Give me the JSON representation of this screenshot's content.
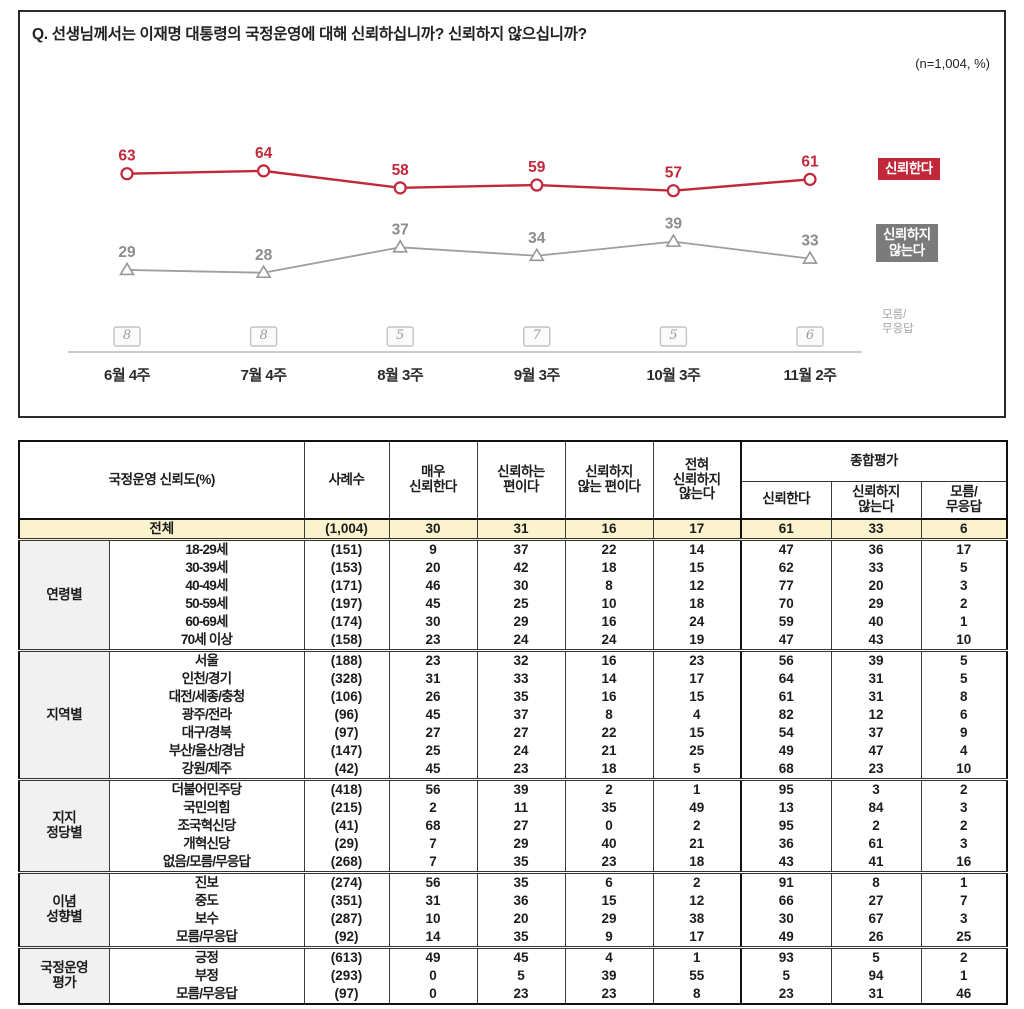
{
  "question": "Q. 선생님께서는 이재명 대통령의 국정운영에 대해 신뢰하십니까? 신뢰하지 않으십니까?",
  "sample_note": "(n=1,004, %)",
  "colors": {
    "trust_accent": "#c1293b",
    "distrust_line": "#9e9e9e",
    "distrust_label": "#8c8c8c",
    "distrust_legend_bg": "#7b7b7b",
    "dk_gray": "#9a9a9a",
    "highlight_row": "#faf3cd"
  },
  "legend": {
    "trust": "신뢰한다",
    "distrust": "신뢰하지\n않는다",
    "dk": "모름/\n무응답"
  },
  "chart_data": {
    "type": "line",
    "categories": [
      "6월 4주",
      "7월 4주",
      "8월 3주",
      "9월 3주",
      "10월 3주",
      "11월 2주"
    ],
    "series": [
      {
        "name": "신뢰한다",
        "marker": "circle",
        "color": "#c1293b",
        "values": [
          63,
          64,
          58,
          59,
          57,
          61
        ]
      },
      {
        "name": "신뢰하지 않는다",
        "marker": "triangle",
        "color": "#9e9e9e",
        "values": [
          29,
          28,
          37,
          34,
          39,
          33
        ]
      },
      {
        "name": "모름/무응답",
        "marker": "box",
        "color": "#9a9a9a",
        "values": [
          8,
          8,
          5,
          7,
          5,
          6
        ]
      }
    ],
    "ylim": [
      0,
      100
    ],
    "grid": false,
    "legend_position": "right",
    "value_labels": true
  },
  "table": {
    "corner": "국정운영 신뢰도(%)",
    "n_col": "사례수",
    "scale_cols": [
      "매우\n신뢰한다",
      "신뢰하는\n편이다",
      "신뢰하지\n않는 편이다",
      "전혀\n신뢰하지\n않는다"
    ],
    "overall": "종합평가",
    "overall_cols": [
      "신뢰한다",
      "신뢰하지\n않는다",
      "모름/\n무응답"
    ],
    "total": {
      "label": "전체",
      "n": "(1,004)",
      "values": [
        30,
        31,
        16,
        17,
        61,
        33,
        6
      ]
    },
    "groups": [
      {
        "name": "연령별",
        "rows": [
          {
            "label": "18-29세",
            "n": "(151)",
            "values": [
              9,
              37,
              22,
              14,
              47,
              36,
              17
            ]
          },
          {
            "label": "30-39세",
            "n": "(153)",
            "values": [
              20,
              42,
              18,
              15,
              62,
              33,
              5
            ]
          },
          {
            "label": "40-49세",
            "n": "(171)",
            "values": [
              46,
              30,
              8,
              12,
              77,
              20,
              3
            ]
          },
          {
            "label": "50-59세",
            "n": "(197)",
            "values": [
              45,
              25,
              10,
              18,
              70,
              29,
              2
            ]
          },
          {
            "label": "60-69세",
            "n": "(174)",
            "values": [
              30,
              29,
              16,
              24,
              59,
              40,
              1
            ]
          },
          {
            "label": "70세 이상",
            "n": "(158)",
            "values": [
              23,
              24,
              24,
              19,
              47,
              43,
              10
            ]
          }
        ]
      },
      {
        "name": "지역별",
        "rows": [
          {
            "label": "서울",
            "n": "(188)",
            "values": [
              23,
              32,
              16,
              23,
              56,
              39,
              5
            ]
          },
          {
            "label": "인천/경기",
            "n": "(328)",
            "values": [
              31,
              33,
              14,
              17,
              64,
              31,
              5
            ]
          },
          {
            "label": "대전/세종/충청",
            "n": "(106)",
            "values": [
              26,
              35,
              16,
              15,
              61,
              31,
              8
            ]
          },
          {
            "label": "광주/전라",
            "n": "(96)",
            "values": [
              45,
              37,
              8,
              4,
              82,
              12,
              6
            ]
          },
          {
            "label": "대구/경북",
            "n": "(97)",
            "values": [
              27,
              27,
              22,
              15,
              54,
              37,
              9
            ]
          },
          {
            "label": "부산/울산/경남",
            "n": "(147)",
            "values": [
              25,
              24,
              21,
              25,
              49,
              47,
              4
            ]
          },
          {
            "label": "강원/제주",
            "n": "(42)",
            "values": [
              45,
              23,
              18,
              5,
              68,
              23,
              10
            ]
          }
        ]
      },
      {
        "name": "지지\n정당별",
        "rows": [
          {
            "label": "더불어민주당",
            "n": "(418)",
            "values": [
              56,
              39,
              2,
              1,
              95,
              3,
              2
            ]
          },
          {
            "label": "국민의힘",
            "n": "(215)",
            "values": [
              2,
              11,
              35,
              49,
              13,
              84,
              3
            ]
          },
          {
            "label": "조국혁신당",
            "n": "(41)",
            "values": [
              68,
              27,
              0,
              2,
              95,
              2,
              2
            ]
          },
          {
            "label": "개혁신당",
            "n": "(29)",
            "values": [
              7,
              29,
              40,
              21,
              36,
              61,
              3
            ]
          },
          {
            "label": "없음/모름/무응답",
            "n": "(268)",
            "values": [
              7,
              35,
              23,
              18,
              43,
              41,
              16
            ]
          }
        ]
      },
      {
        "name": "이념\n성향별",
        "rows": [
          {
            "label": "진보",
            "n": "(274)",
            "values": [
              56,
              35,
              6,
              2,
              91,
              8,
              1
            ]
          },
          {
            "label": "중도",
            "n": "(351)",
            "values": [
              31,
              36,
              15,
              12,
              66,
              27,
              7
            ]
          },
          {
            "label": "보수",
            "n": "(287)",
            "values": [
              10,
              20,
              29,
              38,
              30,
              67,
              3
            ]
          },
          {
            "label": "모름/무응답",
            "n": "(92)",
            "values": [
              14,
              35,
              9,
              17,
              49,
              26,
              25
            ]
          }
        ]
      },
      {
        "name": "국정운영\n평가",
        "rows": [
          {
            "label": "긍정",
            "n": "(613)",
            "values": [
              49,
              45,
              4,
              1,
              93,
              5,
              2
            ]
          },
          {
            "label": "부정",
            "n": "(293)",
            "values": [
              0,
              5,
              39,
              55,
              5,
              94,
              1
            ]
          },
          {
            "label": "모름/무응답",
            "n": "(97)",
            "values": [
              0,
              23,
              23,
              8,
              23,
              31,
              46
            ]
          }
        ]
      }
    ]
  }
}
